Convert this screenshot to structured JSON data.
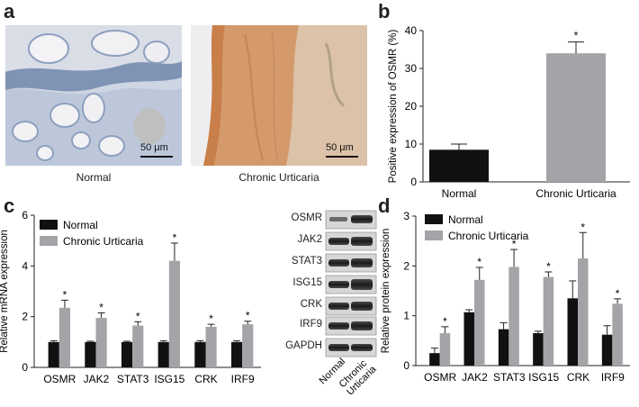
{
  "panels": {
    "a": {
      "letter": "a",
      "images": [
        {
          "caption": "Normal",
          "scale_bar": "50 μm"
        },
        {
          "caption": "Chronic Urticaria",
          "scale_bar": "50 μm"
        }
      ]
    },
    "b": {
      "letter": "b"
    },
    "c": {
      "letter": "c"
    },
    "d": {
      "letter": "d"
    }
  },
  "western_blot": {
    "rows": [
      "OSMR",
      "JAK2",
      "STAT3",
      "ISG15",
      "CRK",
      "IRF9",
      "GAPDH"
    ],
    "columns": [
      "Normal",
      "Chronic Urticaria"
    ],
    "column_lines": [
      [
        "Normal"
      ],
      [
        "Chronic",
        "Urticaria"
      ]
    ]
  },
  "colors": {
    "normal": "#111111",
    "chronic": "#a4a4a8",
    "tissue_normal": "#c9d3df",
    "tissue_chronic": "#d8a87e"
  },
  "chart_data": [
    {
      "panel": "b",
      "type": "bar",
      "categories": [
        "Normal",
        "Chronic Urticaria"
      ],
      "values": [
        8.5,
        34
      ],
      "errors": [
        1.5,
        3
      ],
      "significance": [
        "",
        "*"
      ],
      "bar_colors": [
        "#111111",
        "#a4a4a8"
      ],
      "ylabel": "Positive expression of OSMR (%)",
      "ylim": [
        0,
        40
      ],
      "yticks": [
        0,
        10,
        20,
        30,
        40
      ]
    },
    {
      "panel": "c",
      "type": "bar",
      "categories": [
        "OSMR",
        "JAK2",
        "STAT3",
        "ISG15",
        "CRK",
        "IRF9"
      ],
      "series": [
        {
          "name": "Normal",
          "values": [
            1,
            1,
            1,
            1,
            1,
            1
          ],
          "errors": [
            0.05,
            0.03,
            0.03,
            0.05,
            0.05,
            0.05
          ]
        },
        {
          "name": "Chronic Urticaria",
          "values": [
            2.35,
            1.95,
            1.65,
            4.2,
            1.6,
            1.7
          ],
          "errors": [
            0.3,
            0.2,
            0.15,
            0.7,
            0.1,
            0.12
          ]
        }
      ],
      "significance": [
        "*",
        "*",
        "*",
        "*",
        "*",
        "*"
      ],
      "ylabel": "Relative mRNA expression",
      "ylim": [
        0,
        6
      ],
      "yticks": [
        0,
        2,
        4,
        6
      ],
      "legend_position": "top-left"
    },
    {
      "panel": "d",
      "type": "bar",
      "categories": [
        "OSMR",
        "JAK2",
        "STAT3",
        "ISG15",
        "CRK",
        "IRF9"
      ],
      "series": [
        {
          "name": "Normal",
          "values": [
            0.25,
            1.07,
            0.73,
            0.65,
            1.35,
            0.62
          ],
          "errors": [
            0.1,
            0.05,
            0.13,
            0.04,
            0.35,
            0.18
          ]
        },
        {
          "name": "Chronic Urticaria",
          "values": [
            0.65,
            1.72,
            1.98,
            1.78,
            2.15,
            1.24
          ],
          "errors": [
            0.13,
            0.25,
            0.35,
            0.1,
            0.52,
            0.1
          ]
        }
      ],
      "significance": [
        "*",
        "*",
        "*",
        "*",
        "*",
        "*"
      ],
      "ylabel": "Relative protein expression",
      "ylim": [
        0,
        3
      ],
      "yticks": [
        0,
        1,
        2,
        3
      ],
      "legend_position": "top-left"
    }
  ]
}
